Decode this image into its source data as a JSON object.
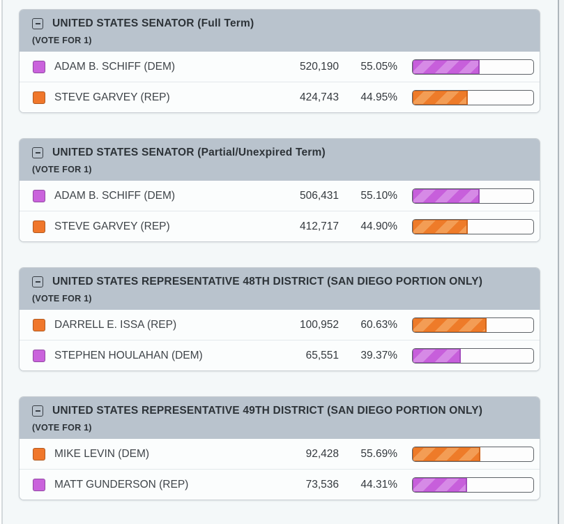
{
  "page": {
    "background": "#f4f8f9",
    "card_header_background": "#b9c3cd",
    "row_background": "#fbfdfd"
  },
  "colors": {
    "purple": {
      "swatch_fill": "#ca63dc",
      "swatch_border": "#9149a3",
      "bar_base": "#c75fdb",
      "bar_stripe": "#d68ae6",
      "bar_edge": "#a44cbd"
    },
    "orange": {
      "swatch_fill": "#f0772b",
      "swatch_border": "#b05a21",
      "bar_base": "#ee7b29",
      "bar_stripe": "#f39d55",
      "bar_edge": "#d0661d"
    }
  },
  "contests": [
    {
      "title": "UNITED STATES SENATOR (Full Term)",
      "vote_for": "(VOTE FOR 1)",
      "candidates": [
        {
          "name": "ADAM B. SCHIFF (DEM)",
          "votes": "520,190",
          "percent": "55.05%",
          "percent_value": 55.05,
          "color": "purple"
        },
        {
          "name": "STEVE GARVEY (REP)",
          "votes": "424,743",
          "percent": "44.95%",
          "percent_value": 44.95,
          "color": "orange"
        }
      ]
    },
    {
      "title": "UNITED STATES SENATOR (Partial/Unexpired Term)",
      "vote_for": "(VOTE FOR 1)",
      "candidates": [
        {
          "name": "ADAM B. SCHIFF (DEM)",
          "votes": "506,431",
          "percent": "55.10%",
          "percent_value": 55.1,
          "color": "purple"
        },
        {
          "name": "STEVE GARVEY (REP)",
          "votes": "412,717",
          "percent": "44.90%",
          "percent_value": 44.9,
          "color": "orange"
        }
      ]
    },
    {
      "title": "UNITED STATES REPRESENTATIVE 48TH DISTRICT (SAN DIEGO PORTION ONLY)",
      "vote_for": "(VOTE FOR 1)",
      "candidates": [
        {
          "name": "DARRELL E. ISSA (REP)",
          "votes": "100,952",
          "percent": "60.63%",
          "percent_value": 60.63,
          "color": "orange"
        },
        {
          "name": "STEPHEN HOULAHAN (DEM)",
          "votes": "65,551",
          "percent": "39.37%",
          "percent_value": 39.37,
          "color": "purple"
        }
      ]
    },
    {
      "title": "UNITED STATES REPRESENTATIVE 49TH DISTRICT (SAN DIEGO PORTION ONLY)",
      "vote_for": "(VOTE FOR 1)",
      "candidates": [
        {
          "name": "MIKE LEVIN (DEM)",
          "votes": "92,428",
          "percent": "55.69%",
          "percent_value": 55.69,
          "color": "orange"
        },
        {
          "name": "MATT GUNDERSON (REP)",
          "votes": "73,536",
          "percent": "44.31%",
          "percent_value": 44.31,
          "color": "purple"
        }
      ]
    }
  ]
}
